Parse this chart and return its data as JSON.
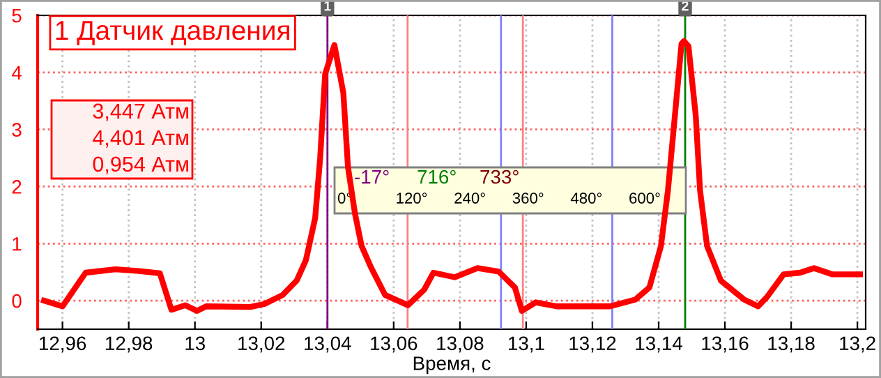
{
  "chart_data": {
    "type": "line",
    "title": "1 Датчик давления",
    "xlabel": "Время, с",
    "x": [
      12.9544,
      12.96,
      12.967,
      12.976,
      12.9831,
      12.9894,
      12.9929,
      12.9971,
      13.0006,
      13.0034,
      13.0167,
      13.0209,
      13.0265,
      13.0307,
      13.0335,
      13.0363,
      13.0378,
      13.0393,
      13.0421,
      13.0448,
      13.0462,
      13.0483,
      13.0503,
      13.0531,
      13.0574,
      13.0643,
      13.0692,
      13.072,
      13.0784,
      13.0853,
      13.0917,
      13.0966,
      13.0987,
      13.1029,
      13.1092,
      13.1253,
      13.133,
      13.1372,
      13.1407,
      13.1428,
      13.1449,
      13.1469,
      13.1476,
      13.149,
      13.1512,
      13.1525,
      13.1546,
      13.1588,
      13.1658,
      13.17,
      13.1728,
      13.1777,
      13.1827,
      13.1869,
      13.1925,
      13.2008
    ],
    "series": [
      {
        "color": "#ff0000",
        "values": [
          0,
          -0.1,
          0.49,
          0.55,
          0.52,
          0.48,
          -0.16,
          -0.08,
          -0.18,
          -0.1,
          -0.11,
          -0.06,
          0.1,
          0.35,
          0.71,
          1.45,
          2.5,
          3.97,
          4.48,
          3.64,
          2.34,
          1.53,
          0.96,
          0.59,
          0.1,
          -0.08,
          0.19,
          0.49,
          0.41,
          0.57,
          0.51,
          0.23,
          -0.18,
          -0.03,
          -0.1,
          -0.1,
          0.02,
          0.23,
          0.96,
          1.93,
          3.24,
          4.5,
          4.55,
          4.46,
          3.24,
          1.93,
          0.96,
          0.35,
          0.02,
          -0.1,
          0.07,
          0.46,
          0.49,
          0.57,
          0.46,
          0.46
        ]
      }
    ],
    "xlim": [
      12.9525,
      13.2025
    ],
    "ylim": [
      -0.5,
      5
    ],
    "xticks": [
      {
        "value": 12.96,
        "label": "12,96"
      },
      {
        "value": 12.98,
        "label": "12,98"
      },
      13,
      {
        "value": 13.02,
        "label": "13,02"
      },
      {
        "value": 13.04,
        "label": "13,04"
      },
      {
        "value": 13.06,
        "label": "13,06"
      },
      {
        "value": 13.08,
        "label": "13,08"
      },
      {
        "value": 13.1,
        "label": "13,1"
      },
      {
        "value": 13.12,
        "label": "13,12"
      },
      {
        "value": 13.14,
        "label": "13,14"
      },
      {
        "value": 13.16,
        "label": "13,16"
      },
      {
        "value": 13.18,
        "label": "13,18"
      },
      {
        "value": 13.2,
        "label": "13,2"
      }
    ],
    "yticks": [
      0,
      1,
      2,
      3,
      4,
      5
    ],
    "grid": true,
    "ref_lines": [
      {
        "axis": "x",
        "value": 13.04,
        "color": "#800080"
      },
      {
        "axis": "x",
        "value": 13.148,
        "color": "#008000"
      },
      {
        "axis": "x",
        "value": 13.0642,
        "color": "#ff8080"
      },
      {
        "axis": "x",
        "value": 13.099,
        "color": "#ff8080"
      },
      {
        "axis": "x",
        "value": 13.0924,
        "color": "#8080ff"
      },
      {
        "axis": "x",
        "value": 13.126,
        "color": "#8080ff"
      }
    ],
    "annotations": [
      {
        "text": "1",
        "x": 13.04,
        "y": 5
      },
      {
        "text": "2",
        "x": 13.148,
        "y": 5
      },
      "3,447 Атм",
      "4,401 Атм",
      "0,954 Атм",
      "-17°",
      "716°",
      "733°",
      "0°",
      "120°",
      "240°",
      "360°",
      "480°",
      "600°"
    ]
  }
}
